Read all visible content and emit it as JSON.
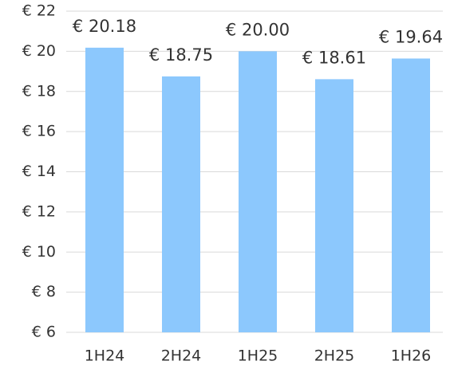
{
  "chart_data": {
    "type": "bar",
    "categories": [
      "1H24",
      "2H24",
      "1H25",
      "2H25",
      "1H26"
    ],
    "values": [
      20.18,
      18.75,
      20.0,
      18.61,
      19.64
    ],
    "value_labels": [
      "€ 20.18",
      "€ 18.75",
      "€ 20.00",
      "€ 18.61",
      "€ 19.64"
    ],
    "color": "#8cc8fd",
    "ylim": [
      6,
      22
    ],
    "yticks": [
      {
        "value": 6,
        "label": "€ 6"
      },
      {
        "value": 8,
        "label": "€ 8"
      },
      {
        "value": 10,
        "label": "€ 10"
      },
      {
        "value": 12,
        "label": "€ 12"
      },
      {
        "value": 14,
        "label": "€ 14"
      },
      {
        "value": 16,
        "label": "€ 16"
      },
      {
        "value": 18,
        "label": "€ 18"
      },
      {
        "value": 20,
        "label": "€ 20"
      },
      {
        "value": 22,
        "label": "€ 22"
      }
    ],
    "grid": true
  }
}
